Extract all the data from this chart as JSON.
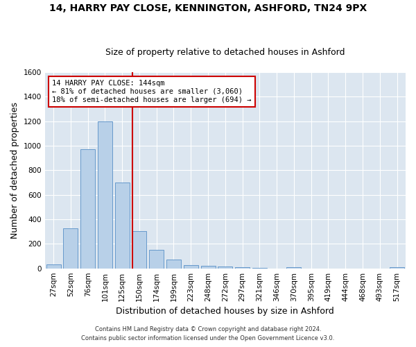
{
  "title_line1": "14, HARRY PAY CLOSE, KENNINGTON, ASHFORD, TN24 9PX",
  "title_line2": "Size of property relative to detached houses in Ashford",
  "xlabel": "Distribution of detached houses by size in Ashford",
  "ylabel": "Number of detached properties",
  "footnote1": "Contains HM Land Registry data © Crown copyright and database right 2024.",
  "footnote2": "Contains public sector information licensed under the Open Government Licence v3.0.",
  "bar_labels": [
    "27sqm",
    "52sqm",
    "76sqm",
    "101sqm",
    "125sqm",
    "150sqm",
    "174sqm",
    "199sqm",
    "223sqm",
    "248sqm",
    "272sqm",
    "297sqm",
    "321sqm",
    "346sqm",
    "370sqm",
    "395sqm",
    "419sqm",
    "444sqm",
    "468sqm",
    "493sqm",
    "517sqm"
  ],
  "bar_values": [
    30,
    325,
    970,
    1200,
    700,
    305,
    150,
    70,
    28,
    20,
    15,
    12,
    5,
    0,
    10,
    0,
    0,
    0,
    0,
    0,
    12
  ],
  "bar_color": "#b8d0e8",
  "bar_edge_color": "#6699cc",
  "vline_color": "#cc0000",
  "annotation_text": "14 HARRY PAY CLOSE: 144sqm\n← 81% of detached houses are smaller (3,060)\n18% of semi-detached houses are larger (694) →",
  "annotation_box_color": "#cc0000",
  "ylim": [
    0,
    1600
  ],
  "yticks": [
    0,
    200,
    400,
    600,
    800,
    1000,
    1200,
    1400,
    1600
  ],
  "fig_bg_color": "#ffffff",
  "plot_bg_color": "#dce6f0",
  "grid_color": "#ffffff",
  "title_fontsize": 10,
  "subtitle_fontsize": 9,
  "axis_label_fontsize": 9,
  "tick_fontsize": 7.5,
  "footnote_fontsize": 6,
  "annotation_fontsize": 7.5
}
